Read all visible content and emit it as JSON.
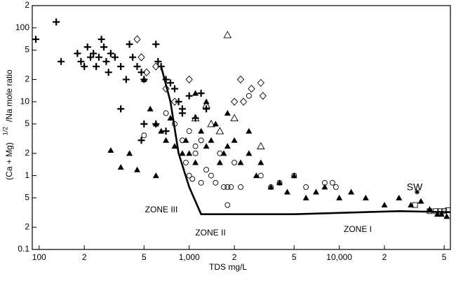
{
  "chart_data": {
    "type": "scatter",
    "xlabel": "TDS mg/L",
    "ylabel": {
      "base": "(Ca + Mg)",
      "superscript": "1/2",
      "rest": "/Na mole ratio"
    },
    "log_x": true,
    "log_y": true,
    "xlim": [
      90,
      55000
    ],
    "ylim": [
      0.1,
      200
    ],
    "xticks": [
      {
        "value": 100,
        "label": "100"
      },
      {
        "value": 200,
        "label": "2"
      },
      {
        "value": 500,
        "label": "5"
      },
      {
        "value": 1000,
        "label": "1,000"
      },
      {
        "value": 2000,
        "label": "2"
      },
      {
        "value": 5000,
        "label": "5"
      },
      {
        "value": 10000,
        "label": "10,000"
      },
      {
        "value": 20000,
        "label": "2"
      },
      {
        "value": 50000,
        "label": "5"
      }
    ],
    "yticks": [
      0.1,
      {
        "value": 0.2,
        "label": "2"
      },
      {
        "value": 0.5,
        "label": "5"
      },
      1,
      {
        "value": 2,
        "label": "2"
      },
      {
        "value": 5,
        "label": "5"
      },
      10,
      {
        "value": 20,
        "label": "2"
      },
      {
        "value": 50,
        "label": "5"
      },
      100,
      {
        "value": 200,
        "label": "2"
      }
    ],
    "color": "#000000",
    "series": [
      {
        "marker": "plus",
        "x": [
          95,
          130,
          140,
          180,
          190,
          200,
          210,
          220,
          230,
          240,
          250,
          260,
          270,
          280,
          290,
          300,
          320,
          350,
          380,
          400,
          420,
          450,
          480,
          500,
          600,
          620,
          650,
          700,
          750,
          800,
          850,
          900,
          1000,
          1200,
          1300,
          1100,
          350,
          500,
          700,
          600,
          480,
          900
        ],
        "values": [
          70,
          120,
          35,
          45,
          35,
          30,
          55,
          40,
          45,
          30,
          40,
          70,
          55,
          35,
          25,
          45,
          40,
          30,
          20,
          60,
          40,
          30,
          25,
          20,
          60,
          35,
          30,
          20,
          18,
          15,
          10,
          8,
          12,
          13,
          8,
          6,
          8,
          5,
          4,
          5,
          3,
          7
        ]
      },
      {
        "marker": "circle",
        "x": [
          500,
          700,
          800,
          900,
          950,
          1000,
          1050,
          1100,
          1200,
          1300,
          1400,
          1500,
          1600,
          1700,
          1800,
          1900,
          2000,
          2200,
          2500,
          1800,
          3000,
          3500,
          4000,
          5000,
          6000,
          8000,
          9000,
          9500,
          1200,
          1000,
          1100
        ],
        "values": [
          3.5,
          7,
          5,
          3,
          1.5,
          1,
          0.9,
          2,
          3,
          1.2,
          1,
          0.8,
          2,
          0.7,
          0.7,
          0.7,
          1.5,
          0.7,
          12,
          0.4,
          1,
          0.7,
          0.8,
          1,
          0.7,
          0.8,
          0.8,
          0.7,
          0.8,
          4,
          2.5
        ]
      },
      {
        "marker": "triangle-filled",
        "x": [
          500,
          550,
          600,
          650,
          700,
          750,
          800,
          900,
          950,
          1000,
          1100,
          1200,
          1300,
          1400,
          1500,
          1600,
          1700,
          1800,
          2000,
          2200,
          2500,
          2800,
          3000,
          3500,
          4000,
          4500,
          5000,
          6000,
          7000,
          8000,
          10000,
          12000,
          15000,
          20000,
          25000,
          30000,
          35000,
          40000,
          45000,
          48000,
          52000,
          1100,
          1300,
          1800,
          2500,
          350,
          450,
          600,
          400,
          300
        ],
        "values": [
          20,
          8,
          5,
          4,
          3,
          6,
          2.5,
          2,
          3,
          2,
          1.5,
          4,
          2.5,
          3,
          5,
          1.5,
          2,
          2.5,
          3,
          1.5,
          2,
          1,
          1.5,
          0.7,
          0.8,
          0.6,
          1,
          0.5,
          0.6,
          0.7,
          0.5,
          0.6,
          0.5,
          0.4,
          0.5,
          0.4,
          0.45,
          0.35,
          0.3,
          0.3,
          0.28,
          13,
          10,
          7,
          4,
          1.3,
          1.2,
          1,
          2,
          2.2
        ]
      },
      {
        "marker": "triangle-open",
        "x": [
          1800,
          1300,
          1400,
          1600,
          2000,
          3000,
          1100
        ],
        "values": [
          80,
          9,
          5,
          4,
          6,
          2.5,
          6
        ]
      },
      {
        "marker": "diamond",
        "x": [
          450,
          480,
          520,
          600,
          700,
          800,
          1000,
          2200,
          2600,
          3000,
          2000,
          2300,
          3100
        ],
        "values": [
          70,
          40,
          25,
          30,
          15,
          10,
          20,
          20,
          15,
          18,
          10,
          10,
          12
        ]
      },
      {
        "marker": "square",
        "x": [
          32000,
          40000,
          44000,
          47000,
          50000,
          53000
        ],
        "values": [
          0.4,
          0.33,
          0.33,
          0.33,
          0.33,
          0.34
        ]
      },
      {
        "marker": "star",
        "x": [
          33000
        ],
        "values": [
          0.6
        ]
      },
      {
        "marker": "line",
        "x": [
          650,
          750,
          850,
          1000,
          1200,
          5000,
          25000,
          55000
        ],
        "values": [
          30,
          10,
          2,
          0.7,
          0.3,
          0.3,
          0.33,
          0.32
        ]
      }
    ],
    "annotations": [
      "ZONE III",
      "ZONE II",
      "ZONE I",
      "SW"
    ]
  }
}
